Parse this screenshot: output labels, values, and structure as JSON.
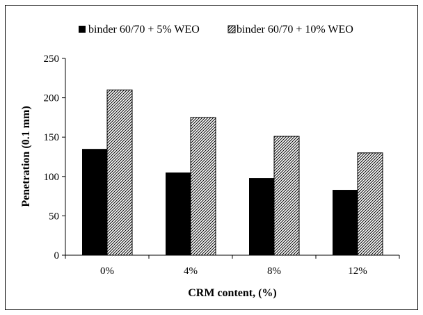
{
  "chart_data": {
    "type": "bar",
    "categories": [
      "0%",
      "4%",
      "8%",
      "12%"
    ],
    "series": [
      {
        "name": "binder 60/70 + 5% WEO",
        "values": [
          135,
          105,
          98,
          83
        ],
        "fill": "solid",
        "color": "#000000"
      },
      {
        "name": "binder 60/70 + 10% WEO",
        "values": [
          210,
          175,
          151,
          130
        ],
        "fill": "hatched",
        "color": "#000000"
      }
    ],
    "xlabel": "CRM content, (%)",
    "ylabel": "Penetration (0.1 mm)",
    "ylim": [
      0,
      250
    ],
    "yticks": [
      0,
      50,
      100,
      150,
      200,
      250
    ],
    "grid": false,
    "legend_position": "top"
  }
}
